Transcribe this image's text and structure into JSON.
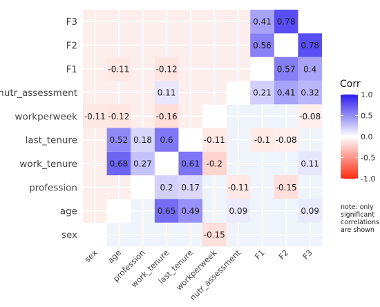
{
  "chart_data": {
    "type": "heatmap",
    "x_categories": [
      "sex",
      "age",
      "profession",
      "work_tenure",
      "last_tenure",
      "workperweek",
      "nutr_assessment",
      "F1",
      "F2",
      "F3"
    ],
    "y_categories": [
      "sex",
      "age",
      "profession",
      "work_tenure",
      "last_tenure",
      "workperweek",
      "nutr_assessment",
      "F1",
      "F2",
      "F3"
    ],
    "matrix": [
      [
        null,
        null,
        null,
        null,
        null,
        -0.15,
        null,
        null,
        null,
        null
      ],
      [
        null,
        null,
        null,
        0.65,
        0.49,
        null,
        0.09,
        null,
        null,
        0.09
      ],
      [
        null,
        null,
        null,
        0.2,
        0.17,
        null,
        -0.11,
        null,
        -0.15,
        null
      ],
      [
        null,
        0.68,
        0.27,
        null,
        0.61,
        -0.2,
        null,
        null,
        null,
        0.11
      ],
      [
        null,
        0.52,
        0.18,
        0.6,
        null,
        -0.11,
        null,
        -0.1,
        -0.08,
        null
      ],
      [
        -0.11,
        -0.12,
        null,
        -0.16,
        null,
        null,
        null,
        null,
        null,
        -0.08
      ],
      [
        null,
        null,
        null,
        0.11,
        null,
        null,
        null,
        0.21,
        0.41,
        0.32
      ],
      [
        null,
        -0.11,
        null,
        -0.12,
        null,
        null,
        null,
        null,
        0.57,
        0.4
      ],
      [
        null,
        null,
        null,
        null,
        null,
        null,
        null,
        0.56,
        null,
        0.78
      ],
      [
        null,
        null,
        null,
        null,
        null,
        null,
        null,
        0.41,
        0.78,
        null
      ]
    ],
    "background_tint": {
      "upper_left": "negative",
      "lower_right": "positive"
    },
    "legend": {
      "title": "Corr",
      "ticks": [
        1.0,
        0.5,
        0.0,
        -0.5,
        -1.0
      ],
      "tick_labels": [
        "1.0",
        "0.5",
        "0.0",
        "-0.5",
        "-1.0"
      ],
      "colors": {
        "low": "#ff2a10",
        "mid": "#ffffff",
        "high": "#2a1cf0"
      },
      "position": "right"
    },
    "note_lines": [
      "note: only",
      "significant",
      "correlations",
      "are shown"
    ],
    "grid": true
  }
}
